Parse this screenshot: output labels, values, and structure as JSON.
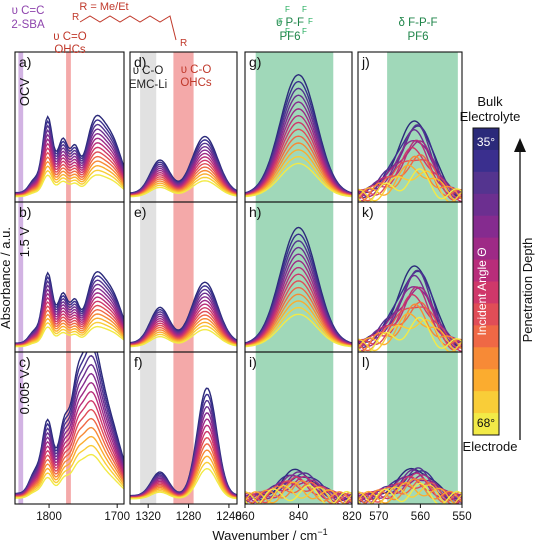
{
  "chart_data": {
    "type": "line",
    "xlabel": "Wavenumber / cm",
    "xlabel_sup": "−1",
    "ylabel": "Absorbance / a.u.",
    "columns": [
      {
        "id": "col1",
        "xlim": [
          1850,
          1690
        ],
        "ticks": [
          "1800",
          "1700"
        ],
        "header": [
          {
            "text": "υ C=C",
            "color": "#8e44ad"
          },
          {
            "text": "2-SBA",
            "color": "#8e44ad"
          }
        ],
        "header2": [
          {
            "text": "υ C=O",
            "color": "#c0392b"
          },
          {
            "text": "OHCs",
            "color": "#c0392b"
          }
        ],
        "bands": [
          {
            "from": 1845,
            "to": 1838,
            "color": "#caa6de"
          },
          {
            "from": 1775,
            "to": 1768,
            "color": "#f29a9a"
          }
        ]
      },
      {
        "id": "col2",
        "xlim": [
          1338,
          1232
        ],
        "ticks": [
          "1320",
          "1280",
          "1240"
        ],
        "header": [
          {
            "text": "υ C-O",
            "color": "#222222"
          },
          {
            "text": "EMC-Li",
            "color": "#222222"
          }
        ],
        "header2": [
          {
            "text": "υ C-O",
            "color": "#c0392b"
          },
          {
            "text": "OHCs",
            "color": "#c0392b"
          }
        ],
        "bands": [
          {
            "from": 1328,
            "to": 1312,
            "color": "#dcdcdc"
          },
          {
            "from": 1295,
            "to": 1275,
            "color": "#f29a9a"
          }
        ]
      },
      {
        "id": "col3",
        "xlim": [
          860,
          820
        ],
        "ticks": [
          "860",
          "840",
          "820"
        ],
        "header": [
          {
            "text": "υ P-F",
            "color": "#1e8449"
          },
          {
            "text": "PF6",
            "color": "#1e8449"
          }
        ],
        "bands": [
          {
            "from": 856,
            "to": 827,
            "color": "#8fd1ad"
          }
        ]
      },
      {
        "id": "col4",
        "xlim": [
          575,
          550
        ],
        "ticks": [
          "570",
          "560",
          "550"
        ],
        "header": [
          {
            "text": "δ F-P-F",
            "color": "#1e8449"
          },
          {
            "text": "PF6",
            "color": "#1e8449"
          }
        ],
        "bands": [
          {
            "from": 568,
            "to": 551,
            "color": "#8fd1ad"
          }
        ]
      }
    ],
    "panels": [
      {
        "label": "a)",
        "row": 0,
        "col": 0
      },
      {
        "label": "d)",
        "row": 0,
        "col": 1
      },
      {
        "label": "g)",
        "row": 0,
        "col": 2
      },
      {
        "label": "j)",
        "row": 0,
        "col": 3
      },
      {
        "label": "b)",
        "row": 1,
        "col": 0
      },
      {
        "label": "e)",
        "row": 1,
        "col": 1
      },
      {
        "label": "h)",
        "row": 1,
        "col": 2
      },
      {
        "label": "k)",
        "row": 1,
        "col": 3
      },
      {
        "label": "c)",
        "row": 2,
        "col": 0
      },
      {
        "label": "f)",
        "row": 2,
        "col": 1
      },
      {
        "label": "i)",
        "row": 2,
        "col": 2
      },
      {
        "label": "l)",
        "row": 2,
        "col": 3
      }
    ],
    "row_labels": [
      "OCV",
      "1.5 V",
      "0.005 V"
    ],
    "colorbar": {
      "top_label": "35°",
      "bottom_label": "68°",
      "axis_label": "Incident Angle Θ",
      "label_top": [
        "Bulk",
        "Electrolyte"
      ],
      "label_bottom": "Electrode",
      "arrow_label": "Penetration Depth",
      "colors": [
        "#2b2a7a",
        "#3a2f8e",
        "#54348f",
        "#6c2f90",
        "#852b8f",
        "#9e2a86",
        "#b82d7a",
        "#cf386a",
        "#e04d57",
        "#ef6845",
        "#f78a36",
        "#fbac2f",
        "#f9cd38",
        "#f2ea47"
      ]
    },
    "series": [
      {
        "angle": 35
      },
      {
        "angle": 37.5
      },
      {
        "angle": 40
      },
      {
        "angle": 42.5
      },
      {
        "angle": 45
      },
      {
        "angle": 47.5
      },
      {
        "angle": 50
      },
      {
        "angle": 52.5
      },
      {
        "angle": 55
      },
      {
        "angle": 57.5
      },
      {
        "angle": 60
      },
      {
        "angle": 62.5
      },
      {
        "angle": 65
      },
      {
        "angle": 68
      }
    ],
    "header_top": {
      "r_label": "R = Me/Et",
      "r_letter": "R",
      "pf6_label": "F"
    }
  }
}
